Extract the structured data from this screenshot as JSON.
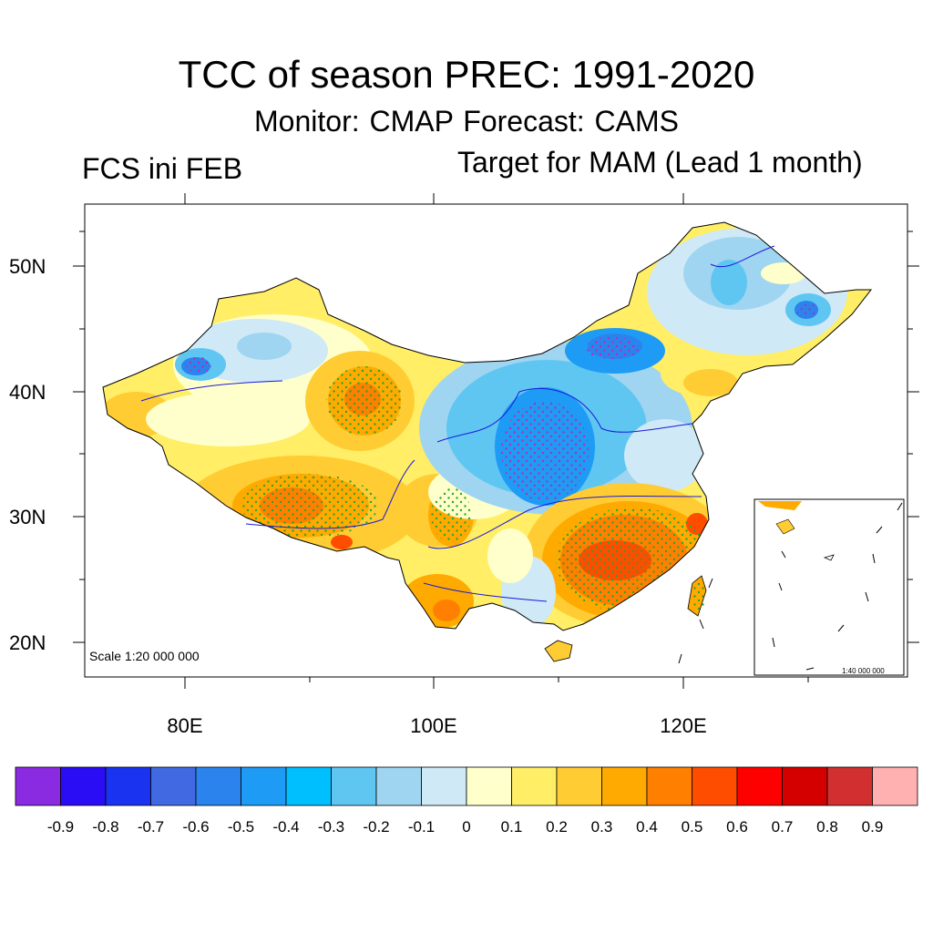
{
  "header": {
    "title": "TCC of season PREC: 1991-2020",
    "subtitle": "Monitor: CMAP   Forecast: CAMS",
    "left_label": "FCS ini FEB",
    "right_label": "Target for MAM (Lead 1 month)"
  },
  "map": {
    "y_axis_labels": [
      "50N",
      "40N",
      "30N",
      "20N"
    ],
    "x_axis_labels": [
      "80E",
      "100E",
      "120E"
    ],
    "scale_main": "Scale 1:20 000 000",
    "scale_inset": "1:40 000 000"
  },
  "colorbar": {
    "colors": [
      "#8a2be2",
      "#2a0cf5",
      "#1a33f0",
      "#4169e1",
      "#2b84ee",
      "#1e9bf5",
      "#00bfff",
      "#5fc6f2",
      "#9fd5f0",
      "#cfe9f7",
      "#ffffcc",
      "#ffee66",
      "#ffcc33",
      "#ffaa00",
      "#ff8000",
      "#ff4d00",
      "#ff0000",
      "#d40000",
      "#d23030",
      "#ffb0b0"
    ],
    "labels": [
      "-0.9",
      "-0.8",
      "-0.7",
      "-0.6",
      "-0.5",
      "-0.4",
      "-0.3",
      "-0.2",
      "-0.1",
      "0",
      "0.1",
      "0.2",
      "0.3",
      "0.4",
      "0.5",
      "0.6",
      "0.7",
      "0.8",
      "0.9"
    ]
  }
}
